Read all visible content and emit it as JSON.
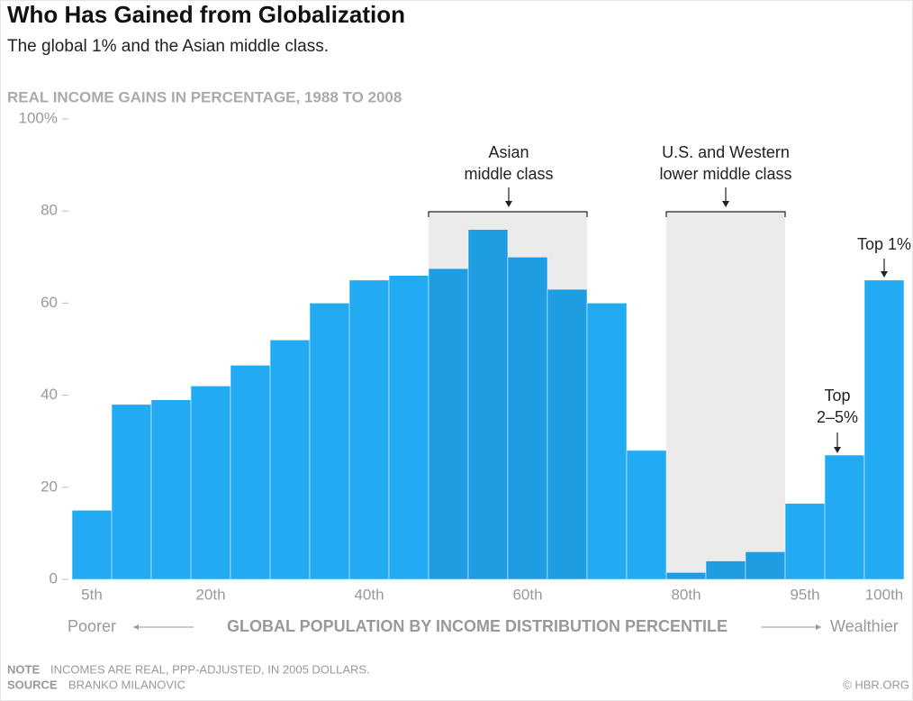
{
  "chart_data": {
    "type": "bar",
    "title": "Who Has Gained from Globalization",
    "subtitle": "The global 1% and the Asian middle class.",
    "y_axis_title": "REAL INCOME GAINS IN PERCENTAGE, 1988 TO 2008",
    "x_axis_title": "GLOBAL POPULATION BY INCOME DISTRIBUTION PERCENTILE",
    "x_left_label": "Poorer",
    "x_right_label": "Wealthier",
    "categories": [
      "5th",
      null,
      null,
      "20th",
      null,
      null,
      null,
      "40th",
      null,
      null,
      null,
      "60th",
      null,
      null,
      null,
      "80th",
      null,
      null,
      "95th",
      null,
      "100th"
    ],
    "values": [
      15,
      38,
      39,
      42,
      46.5,
      52,
      60,
      65,
      66,
      67.5,
      76,
      70,
      63,
      60,
      28,
      1.5,
      4,
      6,
      16.5,
      27,
      65
    ],
    "colors": [
      "#22aaf2",
      "#22aaf2",
      "#22aaf2",
      "#22aaf2",
      "#22aaf2",
      "#22aaf2",
      "#22aaf2",
      "#22aaf2",
      "#22aaf2",
      "#1e9de3",
      "#1e9de3",
      "#1e9de3",
      "#1e9de3",
      "#22aaf2",
      "#22aaf2",
      "#1e9de3",
      "#1e9de3",
      "#1e9de3",
      "#22aaf2",
      "#22aaf2",
      "#22aaf2"
    ],
    "ylim": [
      0,
      100
    ],
    "yticks": [
      0,
      20,
      40,
      60,
      80,
      {
        "value": 100,
        "label": "100%"
      }
    ],
    "annotations": [
      {
        "lines": [
          "Asian",
          "middle class"
        ]
      },
      {
        "lines": [
          "U.S. and Western",
          "lower middle class"
        ]
      },
      {
        "lines": [
          "Top",
          "2–5%"
        ]
      },
      {
        "lines": [
          "Top 1%"
        ]
      }
    ],
    "note_label": "NOTE",
    "note": "INCOMES ARE REAL, PPP-ADJUSTED, IN 2005 DOLLARS.",
    "source_label": "SOURCE",
    "source": "BRANKO MILANOVIC",
    "credit": "© HBR.ORG"
  }
}
